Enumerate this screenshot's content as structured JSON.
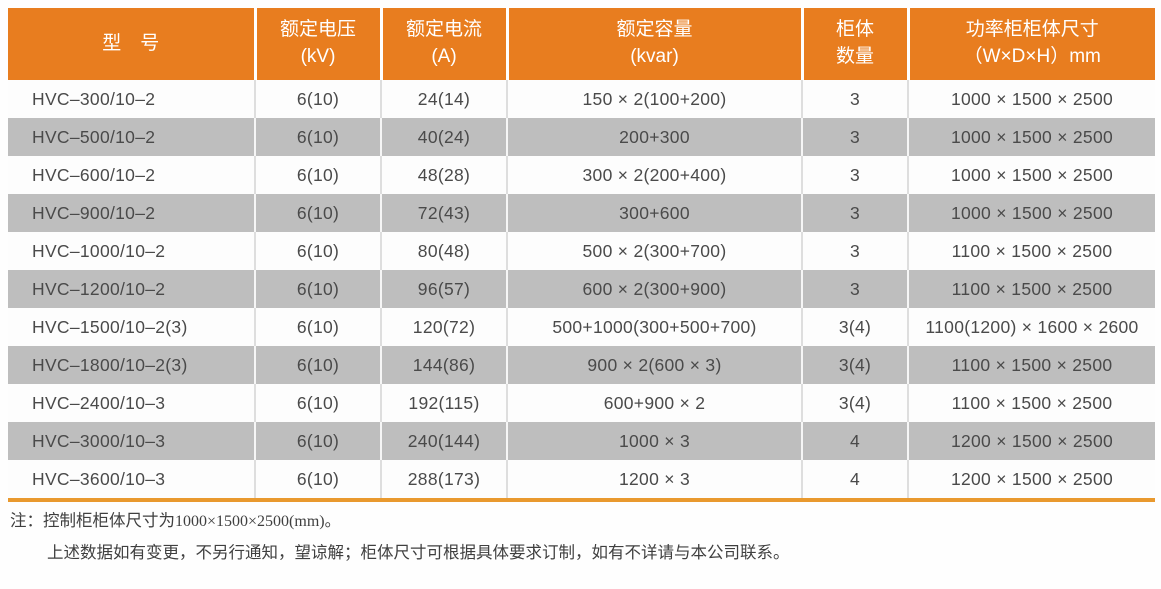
{
  "table": {
    "column_keys": [
      "model",
      "rated-voltage",
      "rated-current",
      "rated-capacity",
      "cabinet-count",
      "cabinet-size"
    ],
    "columns": [
      {
        "line1": "型　号",
        "line2": ""
      },
      {
        "line1": "额定电压",
        "line2": "(kV)"
      },
      {
        "line1": "额定电流",
        "line2": "(A)"
      },
      {
        "line1": "额定容量",
        "line2": "(kvar)"
      },
      {
        "line1": "柜体",
        "line2": "数量"
      },
      {
        "line1": "功率柜柜体尺寸",
        "line2": "（W×D×H）mm"
      }
    ],
    "rows": [
      [
        "HVC–300/10–2",
        "6(10)",
        "24(14)",
        "150 × 2(100+200)",
        "3",
        "1000 × 1500 × 2500"
      ],
      [
        "HVC–500/10–2",
        "6(10)",
        "40(24)",
        "200+300",
        "3",
        "1000 × 1500 × 2500"
      ],
      [
        "HVC–600/10–2",
        "6(10)",
        "48(28)",
        "300 × 2(200+400)",
        "3",
        "1000 × 1500 × 2500"
      ],
      [
        "HVC–900/10–2",
        "6(10)",
        "72(43)",
        "300+600",
        "3",
        "1000 × 1500 × 2500"
      ],
      [
        "HVC–1000/10–2",
        "6(10)",
        "80(48)",
        "500 × 2(300+700)",
        "3",
        "1100 × 1500 × 2500"
      ],
      [
        "HVC–1200/10–2",
        "6(10)",
        "96(57)",
        "600 × 2(300+900)",
        "3",
        "1100 × 1500 × 2500"
      ],
      [
        "HVC–1500/10–2(3)",
        "6(10)",
        "120(72)",
        "500+1000(300+500+700)",
        "3(4)",
        "1100(1200) × 1600 × 2600"
      ],
      [
        "HVC–1800/10–2(3)",
        "6(10)",
        "144(86)",
        "900 × 2(600 × 3)",
        "3(4)",
        "1100 × 1500 × 2500"
      ],
      [
        "HVC–2400/10–3",
        "6(10)",
        "192(115)",
        "600+900 × 2",
        "3(4)",
        "1100 × 1500 × 2500"
      ],
      [
        "HVC–3000/10–3",
        "6(10)",
        "240(144)",
        "1000 × 3",
        "4",
        "1200 × 1500 × 2500"
      ],
      [
        "HVC–3600/10–3",
        "6(10)",
        "288(173)",
        "1200 × 3",
        "4",
        "1200 × 1500 × 2500"
      ]
    ]
  },
  "notes": {
    "line1_prefix": "注：控制柜柜体尺寸为",
    "line1_value": "1000×1500×2500(mm)。",
    "line2": "上述数据如有变更，不另行通知，望谅解；柜体尺寸可根据具体要求订制，如有不详请与本公司联系。"
  },
  "colors": {
    "header_orange": "#e87d1f",
    "bottom_border_orange": "#e9992e",
    "row_gray": "#bebebe",
    "row_white": "#fdfdfd",
    "text_dark": "#4a4a4a"
  }
}
